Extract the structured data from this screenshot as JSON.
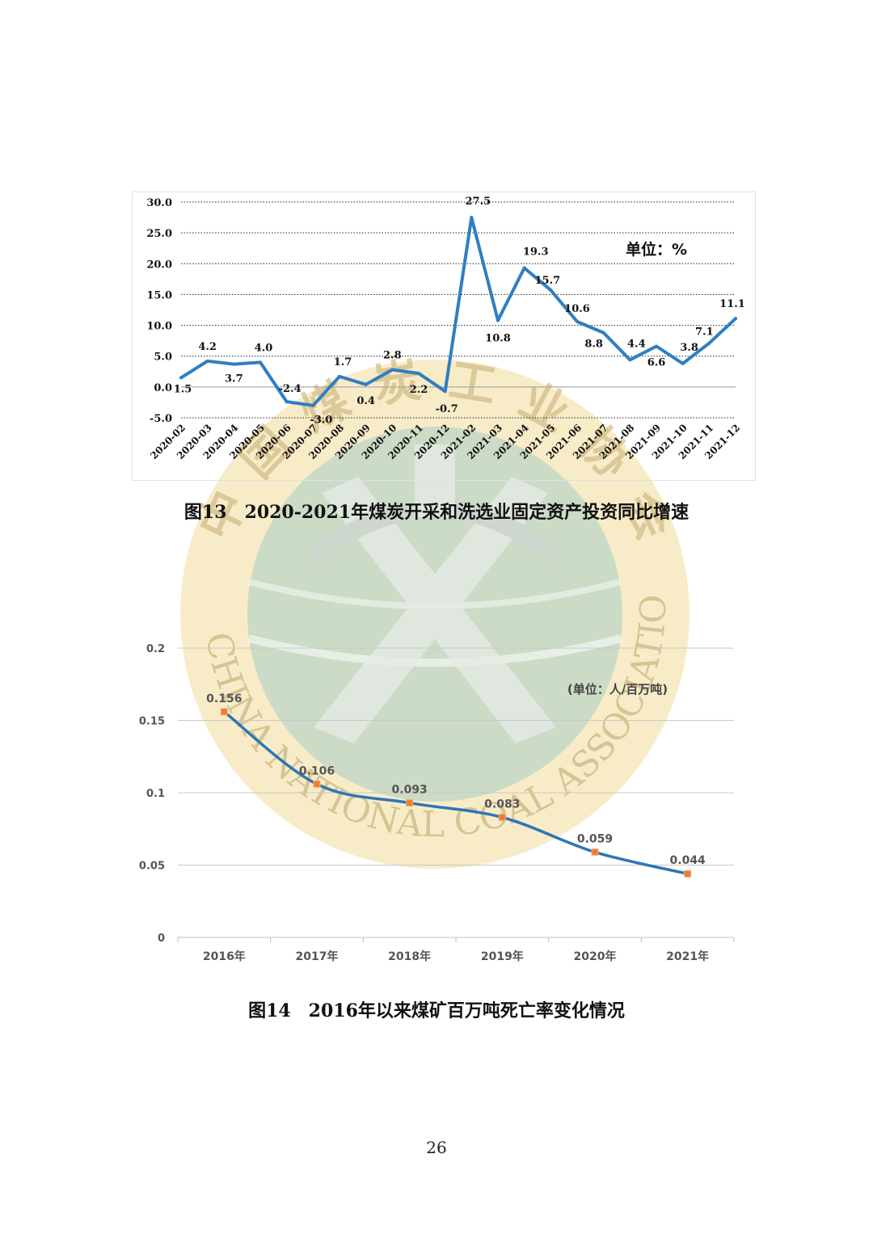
{
  "watermark": {
    "text_cn": "中国煤炭工业协会",
    "text_en": "CHINA NATIONAL COAL ASSOCIATION",
    "colors": {
      "ring": "#f2dc9a",
      "inner": "#bcd6c6",
      "cross": "#e6ece6"
    }
  },
  "chart1": {
    "caption": "图13　2020-2021年煤炭开采和洗选业固定资产投资同比增速",
    "unit_label": "单位：%",
    "chart_data": {
      "type": "line",
      "categories": [
        "2020-02",
        "2020-03",
        "2020-04",
        "2020-05",
        "2020-06",
        "2020-07",
        "2020-08",
        "2020-09",
        "2020-10",
        "2020-11",
        "2020-12",
        "2021-02",
        "2021-03",
        "2021-04",
        "2021-05",
        "2021-06",
        "2021-07",
        "2021-08",
        "2021-09",
        "2021-10",
        "2021-11",
        "2021-12"
      ],
      "values": [
        1.5,
        4.2,
        3.7,
        4.0,
        -2.4,
        -3.0,
        1.7,
        0.4,
        2.8,
        2.2,
        -0.7,
        27.5,
        10.8,
        19.3,
        15.7,
        10.6,
        8.8,
        4.4,
        6.6,
        3.8,
        7.1,
        11.1
      ],
      "labels": [
        "1.5",
        "4.2",
        "3.7",
        "4.0",
        "-2.4",
        "-3.0",
        "1.7",
        "0.4",
        "2.8",
        "2.2",
        "-0.7",
        "27.5",
        "10.8",
        "19.3",
        "15.7",
        "10.6",
        "8.8",
        "4.4",
        "6.6",
        "3.8",
        "7.1",
        "11.1"
      ],
      "yticks": [
        "30.0",
        "25.0",
        "20.0",
        "15.0",
        "10.0",
        "5.0",
        "0.0",
        "-5.0"
      ],
      "ylim": [
        -5,
        30
      ],
      "grid": "dotted horizontal",
      "line_color": "#2f7fc1"
    }
  },
  "chart2": {
    "caption": "图14　2016年以来煤矿百万吨死亡率变化情况",
    "unit_label": "(单位：人/百万吨)",
    "chart_data": {
      "type": "line",
      "categories": [
        "2016年",
        "2017年",
        "2018年",
        "2019年",
        "2020年",
        "2021年"
      ],
      "values": [
        0.156,
        0.106,
        0.093,
        0.083,
        0.059,
        0.044
      ],
      "labels": [
        "0.156",
        "0.106",
        "0.093",
        "0.083",
        "0.059",
        "0.044"
      ],
      "yticks": [
        "0.2",
        "0.15",
        "0.1",
        "0.05",
        "0"
      ],
      "ylim": [
        0,
        0.2
      ],
      "grid": "solid horizontal",
      "line_color": "#2e75b6",
      "marker_color": "#ed7d31"
    }
  },
  "page_number": "26"
}
